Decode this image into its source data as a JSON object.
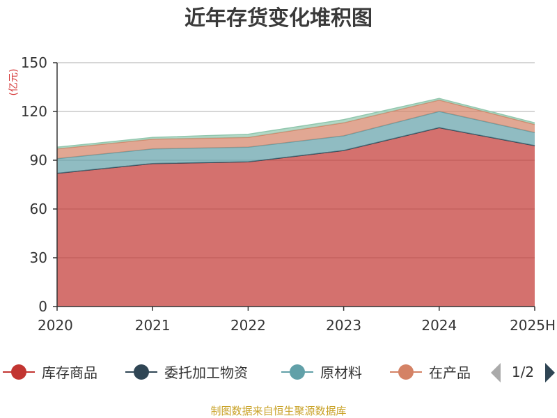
{
  "chart_data": {
    "type": "area",
    "title": "近年存货变化堆积图",
    "unit_label": "(亿元)",
    "categories": [
      "2020",
      "2021",
      "2022",
      "2023",
      "2024",
      "2025H"
    ],
    "ylim": [
      0,
      150
    ],
    "yticks": [
      0,
      30,
      60,
      90,
      120,
      150
    ],
    "grid": true,
    "stacked": true,
    "series": [
      {
        "name": "库存商品",
        "color": "#c23531",
        "values": [
          82,
          88,
          89,
          96,
          110,
          99
        ]
      },
      {
        "name": "委托加工物资",
        "color": "#2f4554",
        "values": [
          0,
          0,
          0,
          0,
          0,
          0
        ]
      },
      {
        "name": "原材料",
        "color": "#61a0a8",
        "values": [
          9,
          9,
          9,
          9,
          10,
          8
        ]
      },
      {
        "name": "在产品",
        "color": "#d48265",
        "values": [
          6,
          6,
          6,
          8,
          7,
          5
        ]
      },
      {
        "name": "",
        "color": "#91c7ae",
        "values": [
          1,
          1,
          2,
          2,
          1,
          1
        ]
      }
    ],
    "legend": {
      "position": "bottom",
      "items": [
        "库存商品",
        "委托加工物资",
        "原材料",
        "在产品"
      ],
      "page_text": "1/2"
    },
    "source_text": "制图数据来自恒生聚源数据库"
  }
}
